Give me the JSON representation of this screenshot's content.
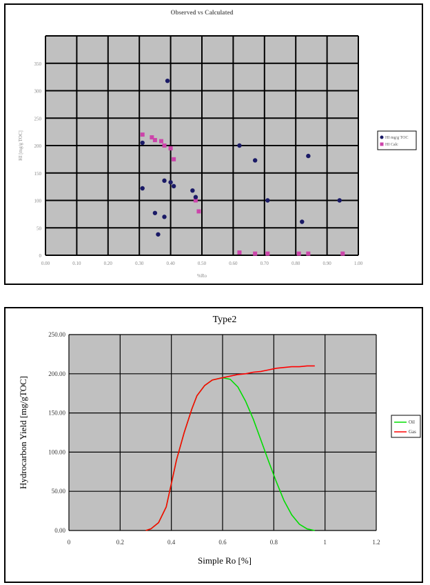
{
  "chart_data": [
    {
      "type": "scatter",
      "title": "Observed vs Calculated",
      "xlabel": "%Ro",
      "ylabel": "HI [mg/g TOC]",
      "xlim": [
        0,
        1
      ],
      "ylim": [
        0,
        400
      ],
      "x_ticks": [
        "0.00",
        "0.10",
        "0.20",
        "0.30",
        "0.40",
        "0.50",
        "0.60",
        "0.70",
        "0.80",
        "0.90",
        "1.00"
      ],
      "y_ticks": [
        "0",
        "50",
        "100",
        "150",
        "200",
        "250",
        "300",
        "350"
      ],
      "grid": true,
      "legend_position": "right",
      "colors": {
        "plot_bg": "#c0c0c0",
        "grid": "#000000",
        "series1": "#1a1a66",
        "series2": "#cc44aa"
      },
      "series": [
        {
          "name": "HI mg/g TOC",
          "x": [
            0.39,
            0.31,
            0.31,
            0.38,
            0.4,
            0.41,
            0.47,
            0.48,
            0.35,
            0.38,
            0.36,
            0.62,
            0.67,
            0.71,
            0.82,
            0.84,
            0.94
          ],
          "y": [
            318,
            205,
            122,
            136,
            133,
            126,
            118,
            106,
            77,
            70,
            38,
            200,
            173,
            100,
            61,
            181,
            100
          ]
        },
        {
          "name": "HI Calc",
          "x": [
            0.31,
            0.34,
            0.35,
            0.37,
            0.38,
            0.4,
            0.41,
            0.48,
            0.49,
            0.67,
            0.71,
            0.81,
            0.84,
            0.95,
            0.62
          ],
          "y": [
            220,
            215,
            210,
            208,
            200,
            195,
            175,
            100,
            80,
            3,
            3,
            3,
            3,
            3,
            5
          ]
        }
      ]
    },
    {
      "type": "line",
      "title": "Type2",
      "xlabel": "Simple Ro [%]",
      "ylabel": "Hydrocarbon Yield [mg/gTOC]",
      "xlim": [
        0,
        1.2
      ],
      "ylim": [
        0,
        250
      ],
      "x_ticks": [
        "0",
        "0.2",
        "0.4",
        "0.6",
        "0.8",
        "1",
        "1.2"
      ],
      "y_ticks": [
        "0.00",
        "50.00",
        "100.00",
        "150.00",
        "200.00",
        "250.00"
      ],
      "grid": true,
      "legend_position": "right",
      "colors": {
        "plot_bg": "#c0c0c0",
        "grid": "#000000",
        "oil": "#00dd00",
        "gas": "#ff0000"
      },
      "series": [
        {
          "name": "Oil",
          "x": [
            0.3,
            0.32,
            0.35,
            0.38,
            0.4,
            0.42,
            0.45,
            0.48,
            0.5,
            0.53,
            0.56,
            0.6,
            0.63,
            0.66,
            0.69,
            0.72,
            0.75,
            0.78,
            0.81,
            0.84,
            0.87,
            0.9,
            0.93,
            0.96
          ],
          "y": [
            0,
            2,
            10,
            30,
            60,
            90,
            125,
            155,
            172,
            185,
            192,
            195,
            193,
            183,
            165,
            142,
            115,
            88,
            62,
            38,
            20,
            8,
            2,
            0
          ]
        },
        {
          "name": "Gas",
          "x": [
            0.3,
            0.32,
            0.35,
            0.38,
            0.4,
            0.42,
            0.45,
            0.48,
            0.5,
            0.53,
            0.56,
            0.6,
            0.63,
            0.66,
            0.69,
            0.72,
            0.75,
            0.78,
            0.81,
            0.84,
            0.87,
            0.9,
            0.93,
            0.96
          ],
          "y": [
            0,
            2,
            10,
            30,
            60,
            90,
            125,
            155,
            172,
            185,
            192,
            195,
            197,
            199,
            200,
            202,
            203,
            205,
            207,
            208,
            209,
            209,
            210,
            210
          ]
        }
      ]
    }
  ]
}
